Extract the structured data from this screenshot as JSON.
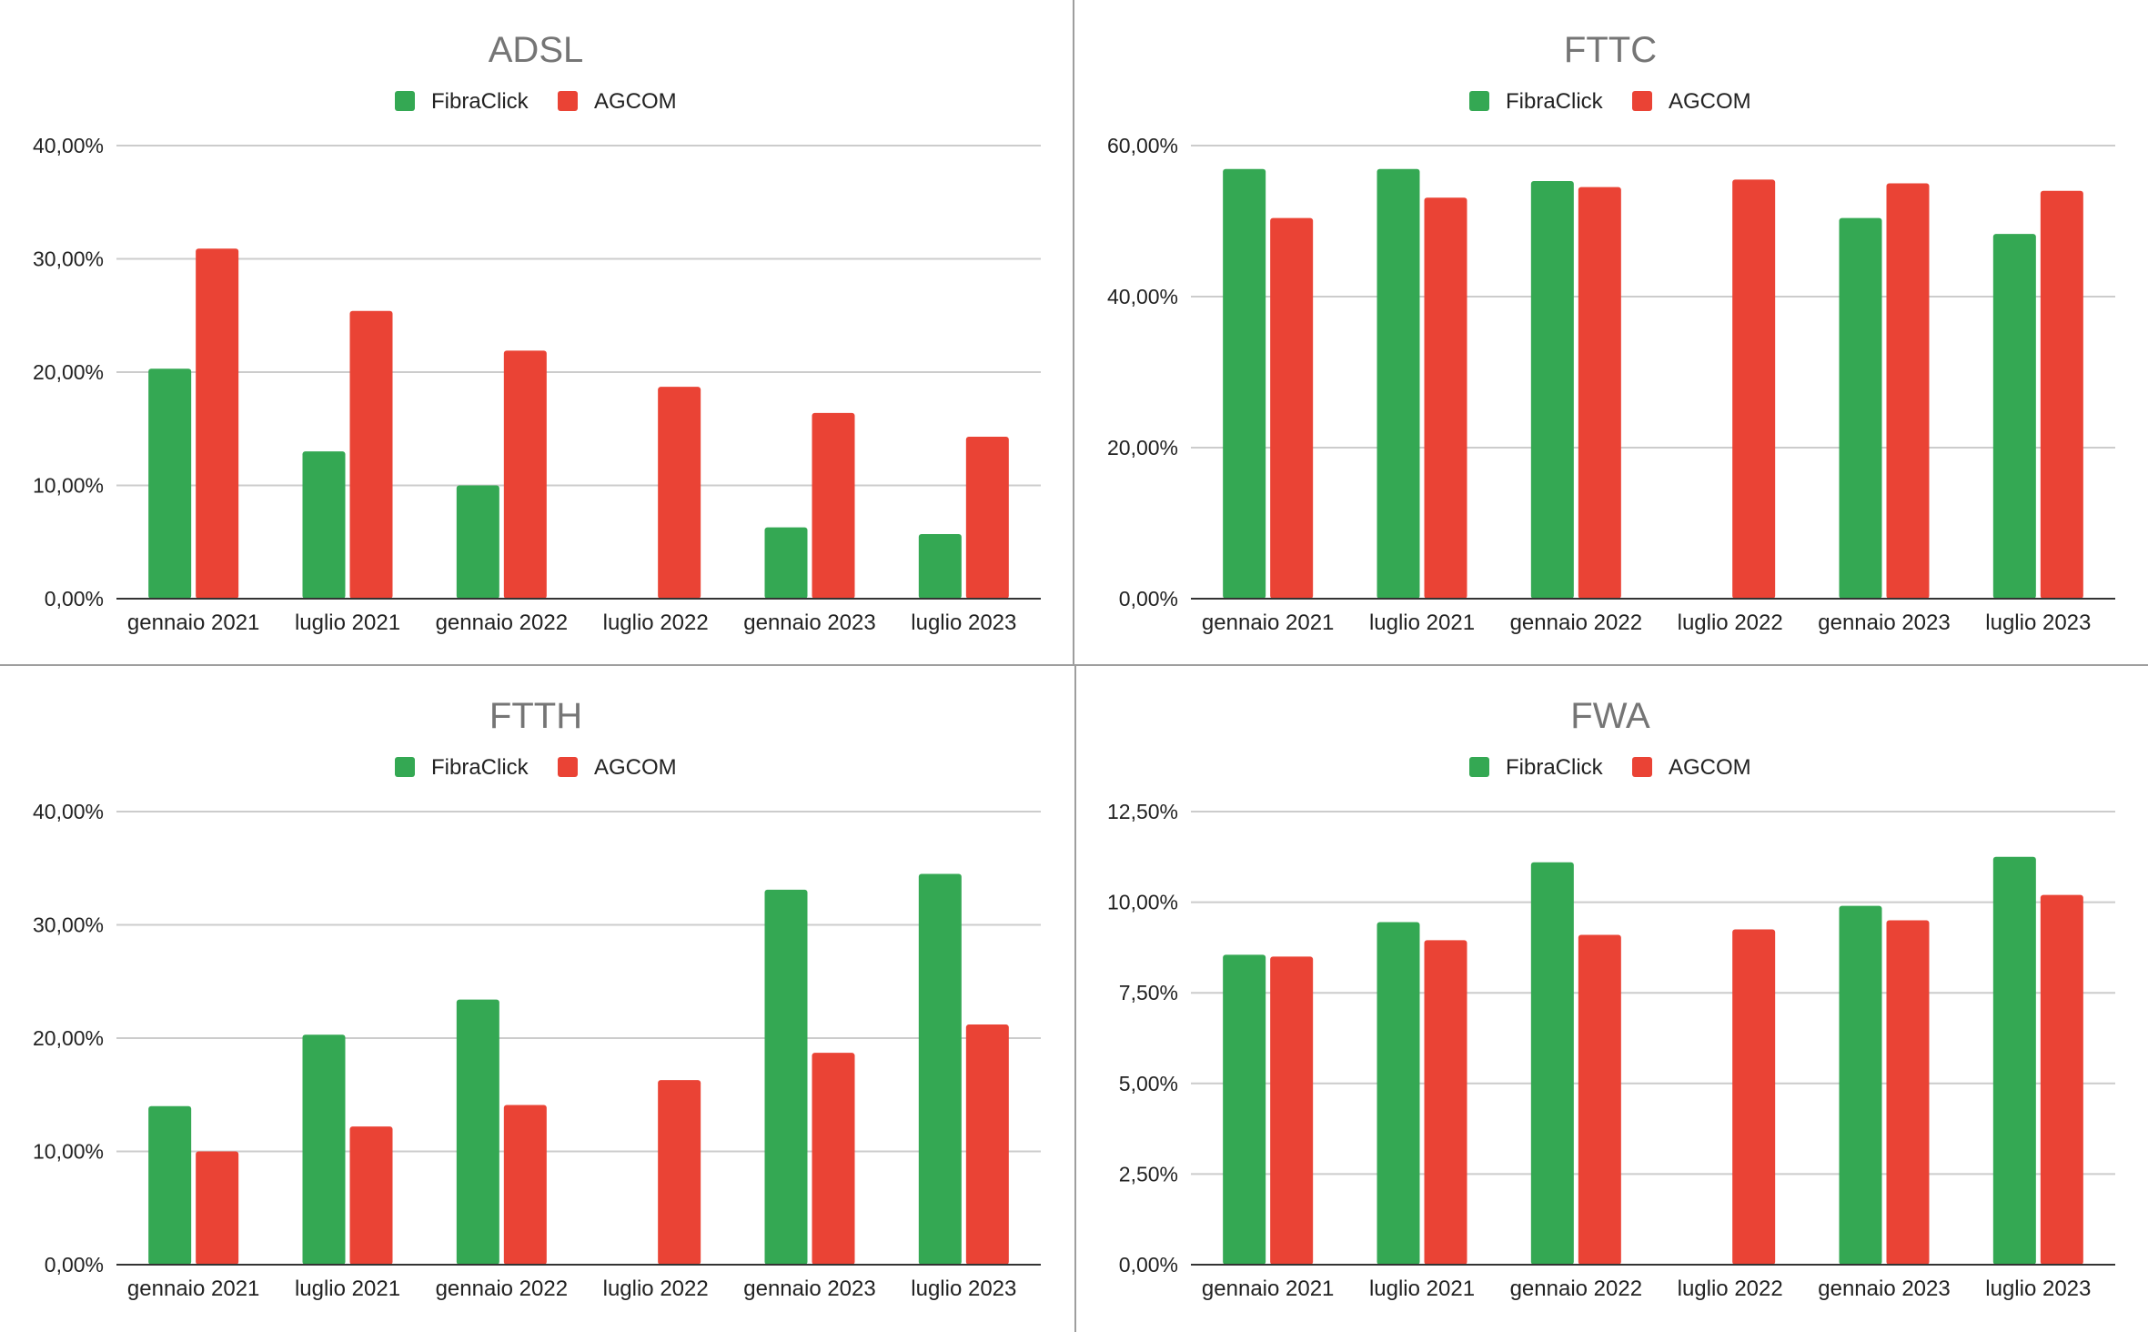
{
  "colors": {
    "fibraclick": "#34a853",
    "agcom": "#ea4335",
    "grid": "#cccccc",
    "axis": "#333333"
  },
  "chart_data": [
    {
      "type": "bar",
      "title": "ADSL",
      "categories": [
        "gennaio 2021",
        "luglio 2021",
        "gennaio 2022",
        "luglio 2022",
        "gennaio 2023",
        "luglio 2023"
      ],
      "series": [
        {
          "name": "FibraClick",
          "values": [
            20.3,
            13.0,
            10.0,
            null,
            6.3,
            5.7
          ]
        },
        {
          "name": "AGCOM",
          "values": [
            30.9,
            25.4,
            21.9,
            18.7,
            16.4,
            14.3
          ]
        }
      ],
      "yticks": [
        "0,00%",
        "10,00%",
        "20,00%",
        "30,00%",
        "40,00%"
      ],
      "ylim": [
        0,
        40
      ],
      "legend": "top",
      "grid": true
    },
    {
      "type": "bar",
      "title": "FTTC",
      "categories": [
        "gennaio 2021",
        "luglio 2021",
        "gennaio 2022",
        "luglio 2022",
        "gennaio 2023",
        "luglio 2023"
      ],
      "series": [
        {
          "name": "FibraClick",
          "values": [
            56.9,
            56.9,
            55.3,
            null,
            50.4,
            48.3
          ]
        },
        {
          "name": "AGCOM",
          "values": [
            50.4,
            53.1,
            54.5,
            55.5,
            55.0,
            54.0
          ]
        }
      ],
      "yticks": [
        "0,00%",
        "20,00%",
        "40,00%",
        "60,00%"
      ],
      "ylim": [
        0,
        60
      ],
      "legend": "top",
      "grid": true
    },
    {
      "type": "bar",
      "title": "FTTH",
      "categories": [
        "gennaio 2021",
        "luglio 2021",
        "gennaio 2022",
        "luglio 2022",
        "gennaio 2023",
        "luglio 2023"
      ],
      "series": [
        {
          "name": "FibraClick",
          "values": [
            14.0,
            20.3,
            23.4,
            null,
            33.1,
            34.5
          ]
        },
        {
          "name": "AGCOM",
          "values": [
            10.0,
            12.2,
            14.1,
            16.3,
            18.7,
            21.2
          ]
        }
      ],
      "yticks": [
        "0,00%",
        "10,00%",
        "20,00%",
        "30,00%",
        "40,00%"
      ],
      "ylim": [
        0,
        40
      ],
      "legend": "top",
      "grid": true
    },
    {
      "type": "bar",
      "title": "FWA",
      "categories": [
        "gennaio 2021",
        "luglio 2021",
        "gennaio 2022",
        "luglio 2022",
        "gennaio 2023",
        "luglio 2023"
      ],
      "series": [
        {
          "name": "FibraClick",
          "values": [
            8.55,
            9.45,
            11.1,
            null,
            9.9,
            11.25
          ]
        },
        {
          "name": "AGCOM",
          "values": [
            8.5,
            8.95,
            9.1,
            9.25,
            9.5,
            10.2
          ]
        }
      ],
      "yticks": [
        "0,00%",
        "2,50%",
        "5,00%",
        "7,50%",
        "10,00%",
        "12,50%"
      ],
      "ylim": [
        0,
        12.5
      ],
      "legend": "top",
      "grid": true
    }
  ]
}
